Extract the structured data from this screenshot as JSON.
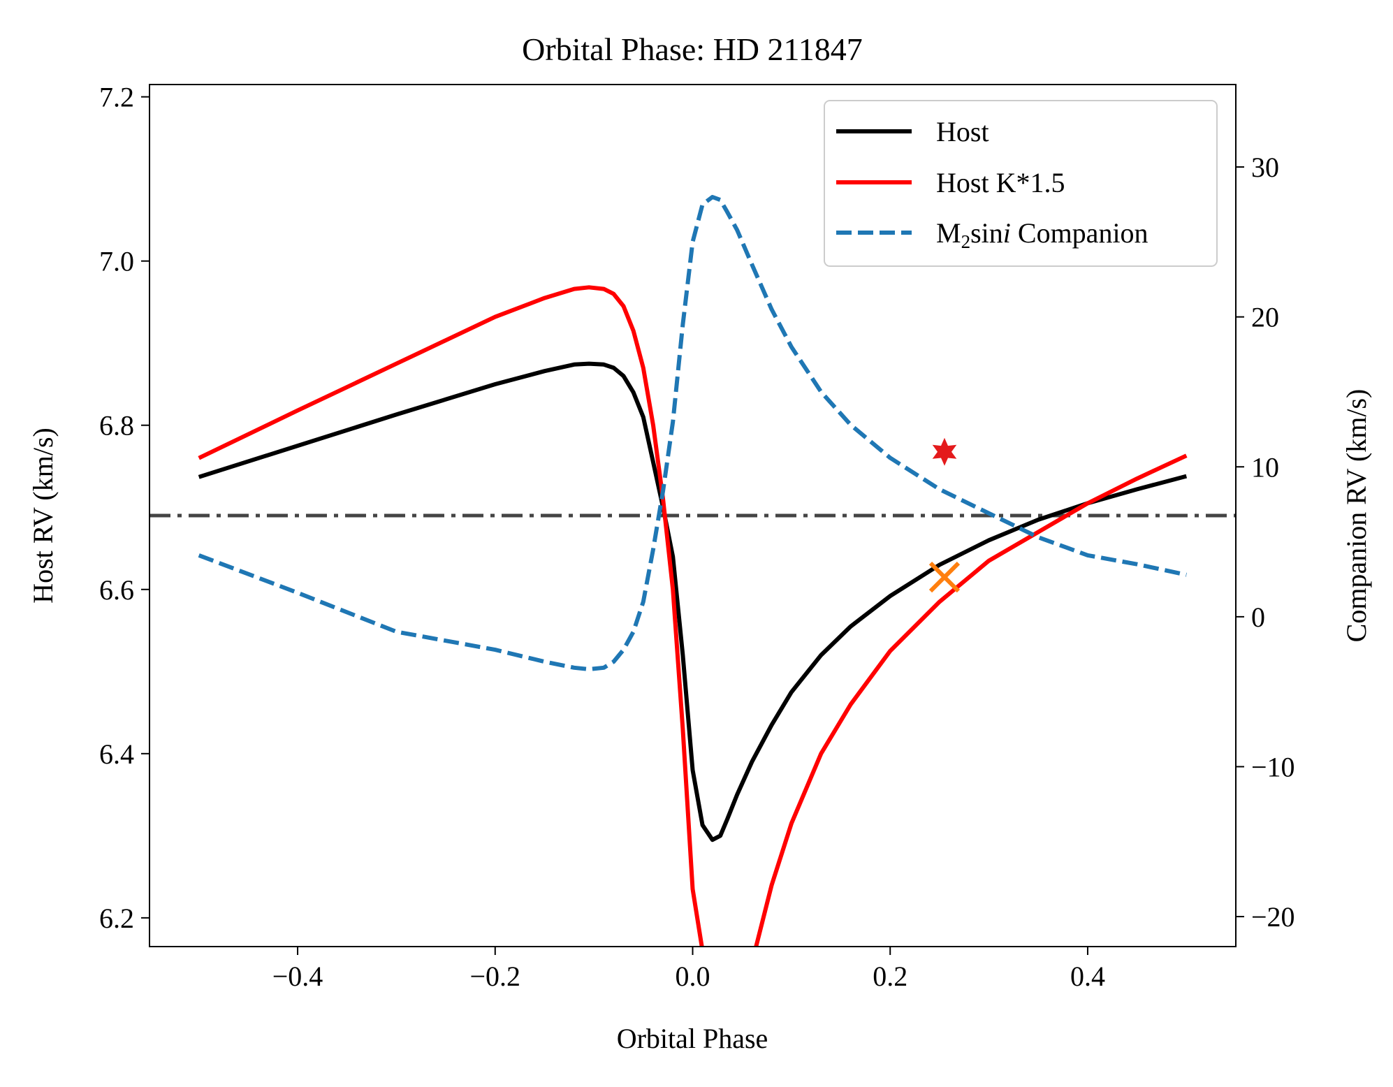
{
  "chart_data": {
    "type": "line",
    "title": "Orbital Phase: HD 211847",
    "xlabel": "Orbital Phase",
    "ylabel_left": "Host RV (km/s)",
    "ylabel_right": "Companion RV (km/s)",
    "xlim": [
      -0.55,
      0.55
    ],
    "ylim_left": [
      6.165,
      7.215
    ],
    "ylim_right": [
      -22.0,
      35.5
    ],
    "x_ticks": [
      -0.4,
      -0.2,
      0.0,
      0.2,
      0.4
    ],
    "x_tick_labels": [
      "−0.4",
      "−0.2",
      "0.0",
      "0.2",
      "0.4"
    ],
    "y_left_ticks": [
      6.2,
      6.4,
      6.6,
      6.8,
      7.0,
      7.2
    ],
    "y_left_tick_labels": [
      "6.2",
      "6.4",
      "6.6",
      "6.8",
      "7.0",
      "7.2"
    ],
    "y_right_ticks": [
      -20,
      -10,
      0,
      10,
      20,
      30
    ],
    "y_right_tick_labels": [
      "−20",
      "−10",
      "0",
      "10",
      "20",
      "30"
    ],
    "grid": false,
    "legend_position": "top-right",
    "legend": {
      "host": "Host",
      "host_k15": "Host K*1.5",
      "companion_prefix": "M",
      "companion_sub": "2",
      "companion_mid": "sin",
      "companion_italic": "i",
      "companion_suffix": " Companion"
    },
    "reference_line": {
      "axis": "left",
      "y": 6.69,
      "style": "dashdot",
      "color": "#444444"
    },
    "series": [
      {
        "name": "Host",
        "axis": "left",
        "color": "#000000",
        "style": "solid",
        "x": [
          -0.5,
          -0.4,
          -0.3,
          -0.2,
          -0.15,
          -0.12,
          -0.105,
          -0.09,
          -0.08,
          -0.07,
          -0.06,
          -0.05,
          -0.04,
          -0.03,
          -0.02,
          -0.01,
          0.0,
          0.01,
          0.02,
          0.028,
          0.035,
          0.045,
          0.06,
          0.08,
          0.1,
          0.13,
          0.16,
          0.2,
          0.25,
          0.3,
          0.35,
          0.4,
          0.45,
          0.5
        ],
        "y": [
          6.737,
          6.775,
          6.813,
          6.85,
          6.866,
          6.874,
          6.875,
          6.874,
          6.87,
          6.86,
          6.84,
          6.81,
          6.755,
          6.7,
          6.64,
          6.52,
          6.38,
          6.313,
          6.295,
          6.3,
          6.32,
          6.35,
          6.39,
          6.435,
          6.475,
          6.52,
          6.555,
          6.592,
          6.63,
          6.66,
          6.685,
          6.705,
          6.722,
          6.738
        ]
      },
      {
        "name": "Host K*1.5",
        "axis": "left",
        "color": "#ff0000",
        "style": "solid",
        "x": [
          -0.5,
          -0.4,
          -0.3,
          -0.2,
          -0.15,
          -0.12,
          -0.105,
          -0.09,
          -0.08,
          -0.07,
          -0.06,
          -0.05,
          -0.04,
          -0.03,
          -0.02,
          -0.01,
          0.0,
          0.01,
          0.015,
          0.05,
          0.06,
          0.08,
          0.1,
          0.13,
          0.16,
          0.2,
          0.25,
          0.3,
          0.35,
          0.4,
          0.45,
          0.5
        ],
        "y": [
          6.76,
          6.818,
          6.875,
          6.932,
          6.955,
          6.966,
          6.968,
          6.966,
          6.96,
          6.945,
          6.915,
          6.87,
          6.8,
          6.71,
          6.6,
          6.43,
          6.235,
          6.16,
          6.1,
          6.095,
          6.145,
          6.24,
          6.315,
          6.4,
          6.46,
          6.525,
          6.585,
          6.635,
          6.67,
          6.705,
          6.735,
          6.763
        ]
      },
      {
        "name": "Companion",
        "axis": "right",
        "color": "#1f77b4",
        "style": "dashed",
        "x": [
          -0.5,
          -0.4,
          -0.3,
          -0.2,
          -0.15,
          -0.12,
          -0.105,
          -0.09,
          -0.08,
          -0.07,
          -0.06,
          -0.05,
          -0.04,
          -0.03,
          -0.02,
          -0.01,
          0.0,
          0.01,
          0.02,
          0.028,
          0.035,
          0.045,
          0.06,
          0.08,
          0.1,
          0.13,
          0.16,
          0.2,
          0.25,
          0.3,
          0.35,
          0.4,
          0.45,
          0.5
        ],
        "y": [
          4.1,
          1.6,
          -1.0,
          -2.2,
          -3.0,
          -3.4,
          -3.5,
          -3.4,
          -3.0,
          -2.2,
          -1.0,
          1.0,
          4.5,
          8.4,
          13.0,
          19.5,
          25.0,
          27.5,
          28.0,
          27.8,
          27.0,
          25.8,
          23.5,
          20.5,
          18.0,
          15.0,
          12.8,
          10.6,
          8.5,
          6.9,
          5.3,
          4.1,
          3.5,
          2.8
        ]
      }
    ],
    "markers": [
      {
        "label": "companion-current",
        "axis": "right",
        "x": 0.255,
        "y": 11.0,
        "symbol": "star",
        "color": "#e41a1c"
      },
      {
        "label": "host-current",
        "axis": "left",
        "x": 0.255,
        "y": 6.615,
        "symbol": "x",
        "color": "#ff7f0e"
      }
    ]
  }
}
